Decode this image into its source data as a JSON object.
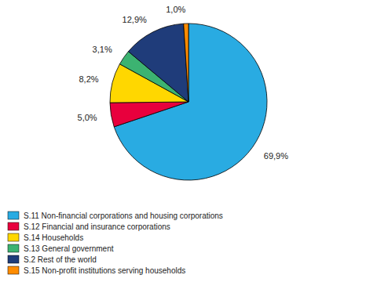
{
  "chart_data": {
    "type": "pie",
    "categories": [
      "S.11 Non-financial corporations and housing corporations",
      "S.12 Financial and insurance corporations",
      "S.14 Households",
      "S.13 General government",
      "S.2 Rest of the world",
      "S.15 Non-profit institutions serving households"
    ],
    "values": [
      69.9,
      5.0,
      8.2,
      3.1,
      12.9,
      1.0
    ],
    "value_labels": [
      "69,9%",
      "5,0%",
      "8,2%",
      "3,1%",
      "12,9%",
      "1,0%"
    ],
    "colors": [
      "#29ABE2",
      "#E8003D",
      "#FFD700",
      "#3CB371",
      "#1F3C7A",
      "#FF8C00"
    ],
    "data_labels": true,
    "legend": "bottom-left"
  }
}
